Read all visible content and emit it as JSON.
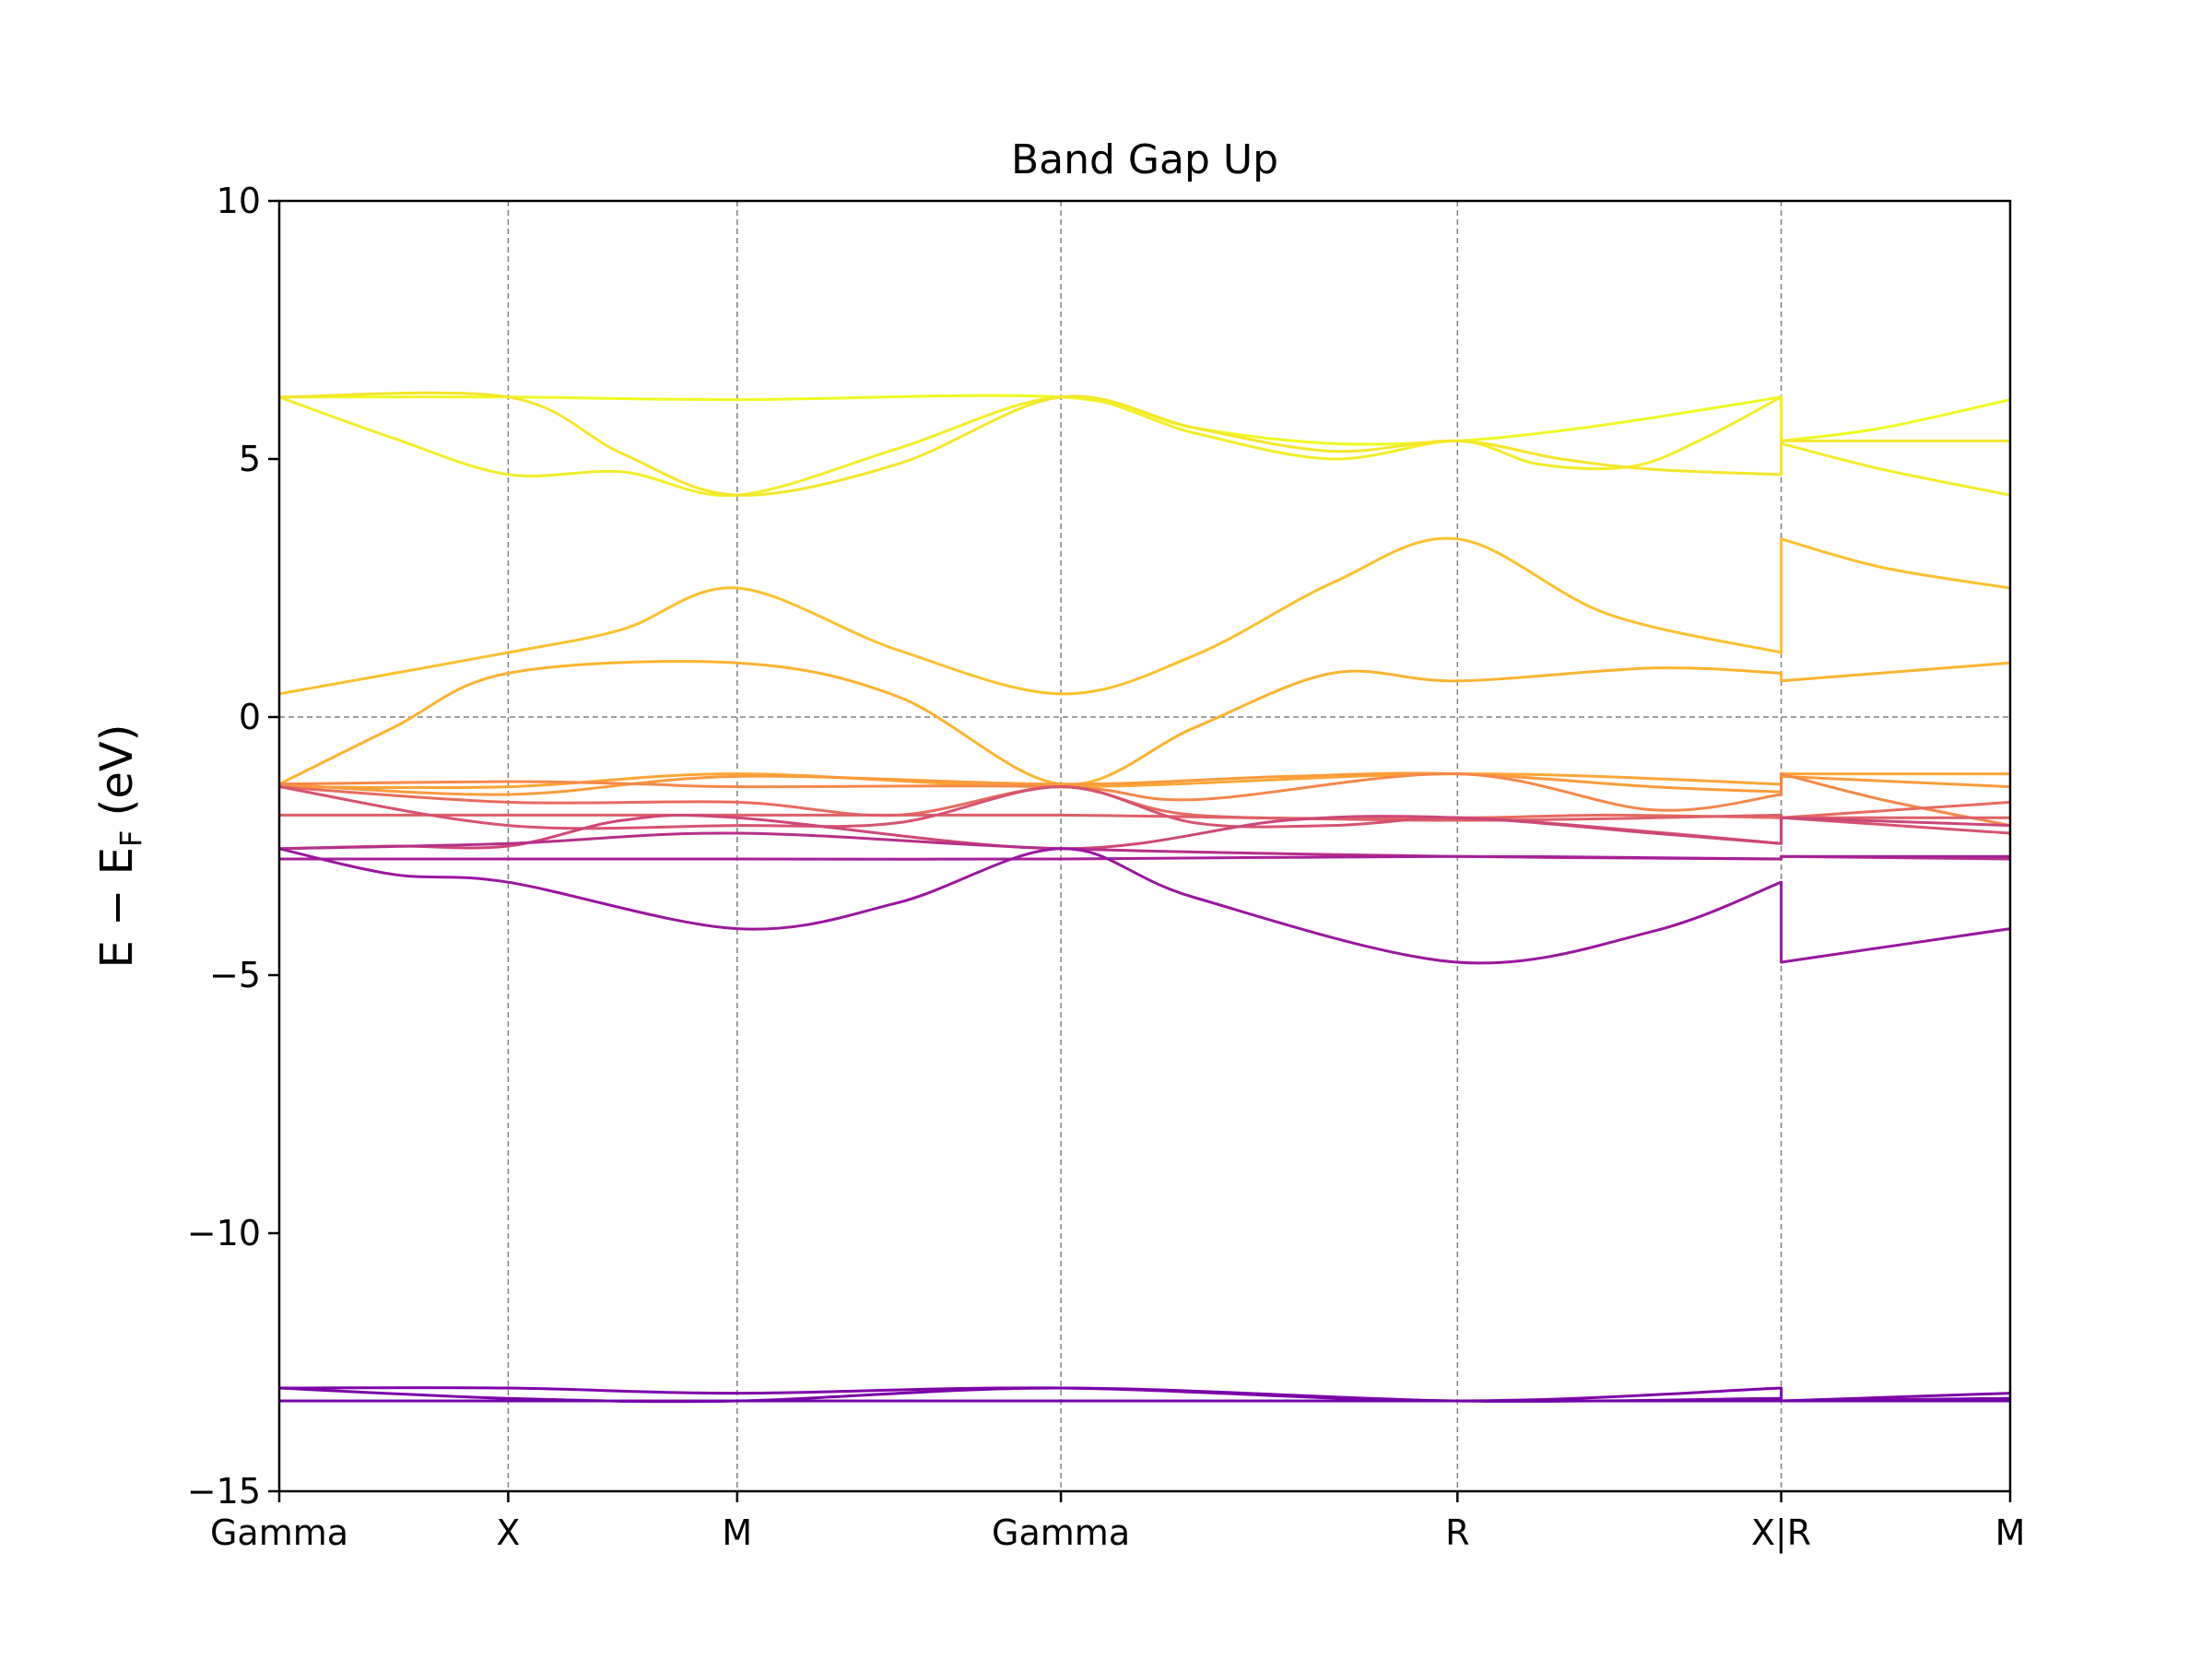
{
  "chart_data": {
    "type": "line",
    "title": "Band Gap Up",
    "ylabel_main": "E − E",
    "ylabel_sub": "F",
    "ylabel_unit": " (eV)",
    "xlabel": "",
    "ylim": [
      -15,
      10
    ],
    "yticks": [
      {
        "value": 10,
        "label": "10"
      },
      {
        "value": 5,
        "label": "5"
      },
      {
        "value": 0,
        "label": "0"
      },
      {
        "value": -5,
        "label": "−5"
      },
      {
        "value": -10,
        "label": "−10"
      },
      {
        "value": -15,
        "label": "−15"
      }
    ],
    "kpath": [
      {
        "label": "Gamma",
        "x": 0.0
      },
      {
        "label": "X",
        "x": 0.5
      },
      {
        "label": "M",
        "x": 1.0
      },
      {
        "label": "Gamma",
        "x": 1.707
      },
      {
        "label": "R",
        "x": 2.573
      },
      {
        "label": "X|R",
        "x": 3.28
      },
      {
        "label": "M",
        "x": 3.78
      }
    ],
    "xlim": [
      0,
      3.78
    ],
    "fermi_level": 0,
    "grid": "dashed vertical lines at high-symmetry points, dashed horizontal line at E_F",
    "series": [
      {
        "color": "#f0f921",
        "x": [
          0,
          0.5,
          1.0,
          1.707,
          2.0,
          2.3,
          2.573,
          2.8,
          3.0,
          3.28,
          3.28,
          3.5,
          3.78
        ],
        "values": [
          6.2,
          6.2,
          6.15,
          6.2,
          5.6,
          5.3,
          5.35,
          5.55,
          5.8,
          6.2,
          5.35,
          5.6,
          6.15
        ]
      },
      {
        "color": "#f3ee27",
        "x": [
          0,
          0.25,
          0.5,
          0.75,
          1.0,
          1.35,
          1.707,
          2.0,
          2.3,
          2.573,
          2.75,
          2.95,
          3.1,
          3.28,
          3.28,
          3.5,
          3.78
        ],
        "values": [
          6.2,
          5.4,
          4.7,
          4.75,
          4.3,
          5.2,
          6.2,
          5.5,
          5.0,
          5.35,
          4.9,
          4.85,
          5.35,
          6.2,
          5.3,
          4.8,
          4.3
        ]
      },
      {
        "color": "#f6e62b",
        "x": [
          0,
          0.5,
          0.75,
          1.0,
          1.35,
          1.707,
          2.0,
          2.3,
          2.573,
          2.8,
          3.0,
          3.28,
          3.28,
          3.78
        ],
        "values": [
          6.2,
          6.2,
          5.1,
          4.3,
          4.9,
          6.2,
          5.6,
          5.15,
          5.35,
          5.0,
          4.8,
          4.7,
          5.35,
          5.35
        ]
      },
      {
        "color": "#fcc12e",
        "x": [
          0,
          0.5,
          0.75,
          1.0,
          1.35,
          1.707,
          2.0,
          2.3,
          2.573,
          2.9,
          3.28,
          3.28,
          3.5,
          3.78
        ],
        "values": [
          0.45,
          1.25,
          1.7,
          2.5,
          1.3,
          0.45,
          1.2,
          2.6,
          3.45,
          2.0,
          1.25,
          3.45,
          2.9,
          2.5
        ]
      },
      {
        "color": "#fdb32f",
        "x": [
          0,
          0.25,
          0.5,
          1.0,
          1.35,
          1.707,
          2.0,
          2.3,
          2.573,
          3.0,
          3.28,
          3.28,
          3.78
        ],
        "values": [
          -1.3,
          -0.2,
          0.85,
          1.05,
          0.4,
          -1.3,
          -0.2,
          0.85,
          0.7,
          0.95,
          0.85,
          0.7,
          1.05
        ]
      },
      {
        "color": "#fca636",
        "x": [
          0,
          0.5,
          1.0,
          1.707,
          2.573,
          3.28,
          3.28,
          3.78
        ],
        "values": [
          -1.35,
          -1.35,
          -1.1,
          -1.35,
          -1.1,
          -1.3,
          -1.1,
          -1.1
        ]
      },
      {
        "color": "#fb9b3b",
        "x": [
          0,
          0.5,
          1.0,
          1.707,
          2.2,
          2.573,
          3.0,
          3.28,
          3.28,
          3.78
        ],
        "values": [
          -1.3,
          -1.5,
          -1.15,
          -1.3,
          -1.15,
          -1.1,
          -1.35,
          -1.45,
          -1.15,
          -1.35
        ]
      },
      {
        "color": "#f48849",
        "x": [
          0,
          0.5,
          0.8,
          1.0,
          1.707,
          2.0,
          2.573,
          3.0,
          3.28,
          3.28,
          3.5,
          3.78
        ],
        "values": [
          -1.3,
          -1.25,
          -1.3,
          -1.35,
          -1.35,
          -1.6,
          -1.1,
          -1.8,
          -1.5,
          -1.1,
          -1.6,
          -2.1
        ]
      },
      {
        "color": "#e66c5c",
        "x": [
          0,
          0.5,
          1.0,
          1.35,
          1.707,
          2.0,
          2.573,
          2.9,
          3.28,
          3.28,
          3.78
        ],
        "values": [
          -1.35,
          -1.65,
          -1.65,
          -1.9,
          -1.35,
          -1.9,
          -1.95,
          -1.9,
          -1.95,
          -1.95,
          -1.65
        ]
      },
      {
        "color": "#de5f65",
        "x": [
          0,
          0.5,
          1.0,
          1.707,
          2.573,
          3.28,
          3.28,
          3.78
        ],
        "values": [
          -1.9,
          -1.9,
          -1.9,
          -1.9,
          -2.0,
          -1.9,
          -1.95,
          -1.95
        ]
      },
      {
        "color": "#d5536f",
        "x": [
          0,
          0.5,
          1.0,
          1.35,
          1.707,
          2.0,
          2.3,
          2.573,
          2.9,
          3.28,
          3.28,
          3.78
        ],
        "values": [
          -1.35,
          -2.1,
          -2.1,
          -2.05,
          -1.35,
          -2.05,
          -2.1,
          -1.95,
          -2.15,
          -2.45,
          -1.95,
          -2.25
        ]
      },
      {
        "color": "#cc4778",
        "x": [
          0,
          0.25,
          0.5,
          0.75,
          1.0,
          1.707,
          2.2,
          2.573,
          3.0,
          3.28,
          3.28,
          3.78
        ],
        "values": [
          -2.55,
          -2.5,
          -2.5,
          -2.0,
          -1.95,
          -2.55,
          -2.0,
          -1.95,
          -2.25,
          -2.45,
          -1.95,
          -2.1
        ]
      },
      {
        "color": "#b52f8c",
        "x": [
          0,
          0.5,
          1.0,
          1.707,
          2.573,
          3.28,
          3.28,
          3.78
        ],
        "values": [
          -2.55,
          -2.45,
          -2.25,
          -2.55,
          -2.7,
          -2.75,
          -2.7,
          -2.75
        ]
      },
      {
        "color": "#a62098",
        "x": [
          0,
          1.0,
          1.707,
          2.573,
          3.28,
          3.28,
          3.78
        ],
        "values": [
          -2.75,
          -2.75,
          -2.75,
          -2.7,
          -2.75,
          -2.7,
          -2.7
        ]
      },
      {
        "color": "#9a169f",
        "x": [
          0,
          0.25,
          0.5,
          1.0,
          1.35,
          1.707,
          2.0,
          2.573,
          3.0,
          3.28,
          3.28,
          3.78
        ],
        "values": [
          -2.55,
          -3.05,
          -3.2,
          -4.1,
          -3.6,
          -2.55,
          -3.5,
          -4.75,
          -4.15,
          -3.2,
          -4.75,
          -4.1
        ]
      },
      {
        "color": "#7e03a8",
        "x": [
          0,
          0.5,
          1.0,
          1.707,
          2.573,
          3.28,
          3.28,
          3.78
        ],
        "values": [
          -13.0,
          -13.0,
          -13.1,
          -13.0,
          -13.25,
          -13.0,
          -13.25,
          -13.1
        ]
      },
      {
        "color": "#7a02a8",
        "x": [
          0,
          0.5,
          1.0,
          1.707,
          2.573,
          3.28,
          3.28,
          3.78
        ],
        "values": [
          -13.0,
          -13.2,
          -13.25,
          -13.0,
          -13.25,
          -13.2,
          -13.25,
          -13.2
        ]
      },
      {
        "color": "#7201a8",
        "x": [
          0,
          1.0,
          1.707,
          2.573,
          3.28,
          3.28,
          3.78
        ],
        "values": [
          -13.25,
          -13.25,
          -13.25,
          -13.25,
          -13.25,
          -13.25,
          -13.25
        ]
      }
    ]
  }
}
